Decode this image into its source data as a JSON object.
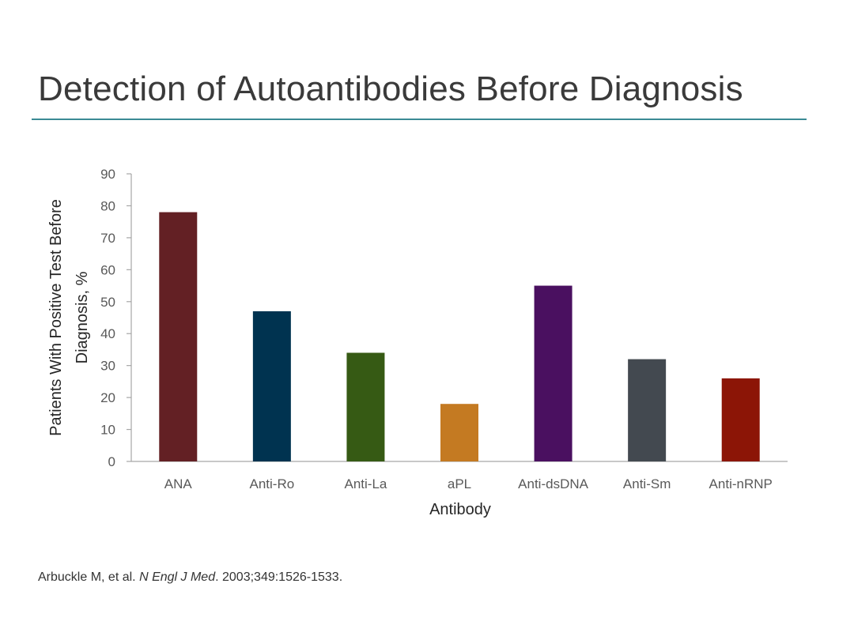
{
  "slide": {
    "title": "Detection of Autoantibodies Before Diagnosis",
    "rule_color": "#3b8a94"
  },
  "citation": {
    "authors": "Arbuckle M, et al.",
    "journal": "N Engl J Med",
    "details": ". 2003;349:1526-1533."
  },
  "chart_data": {
    "type": "bar",
    "title": "",
    "xlabel": "Antibody",
    "ylabel": [
      "Patients With Positive Test Before",
      "Diagnosis, %"
    ],
    "ylim": [
      0,
      90
    ],
    "yticks": [
      0,
      10,
      20,
      30,
      40,
      50,
      60,
      70,
      80,
      90
    ],
    "grid": false,
    "legend": "none",
    "categories": [
      "ANA",
      "Anti-Ro",
      "Anti-La",
      "aPL",
      "Anti-dsDNA",
      "Anti-Sm",
      "Anti-nRNP"
    ],
    "values": [
      78,
      47,
      34,
      18,
      55,
      32,
      26
    ],
    "colors": [
      "#632024",
      "#003350",
      "#365a14",
      "#c47a22",
      "#4a1060",
      "#434950",
      "#8c1506"
    ]
  }
}
